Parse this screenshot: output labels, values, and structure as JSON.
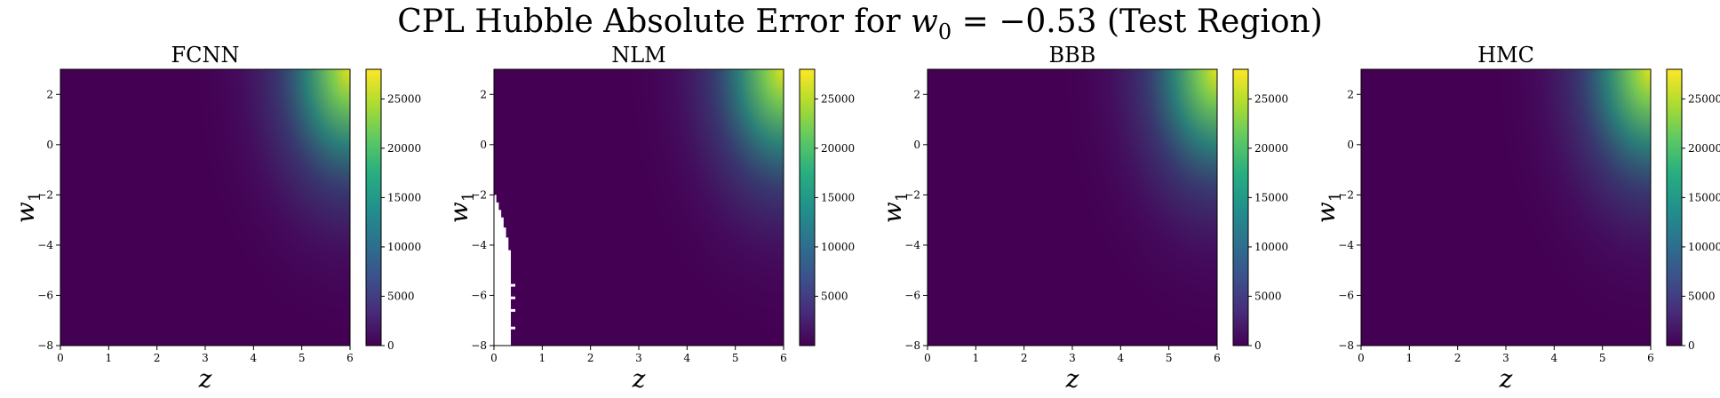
{
  "figure": {
    "title_prefix": "CPL Hubble Absolute Error for ",
    "title_var": "w",
    "title_sub": "0",
    "title_suffix": " = −0.53 (Test Region)"
  },
  "chart_data": [
    {
      "type": "heatmap",
      "title": "FCNN",
      "xlabel": "z",
      "ylabel": "w",
      "ylabel_sub": "1",
      "xlim": [
        0,
        6
      ],
      "ylim": [
        -8,
        3
      ],
      "xticks": [
        0,
        1,
        2,
        3,
        4,
        5,
        6
      ],
      "yticks": [
        -8,
        -6,
        -4,
        -2,
        0,
        2
      ],
      "colormap": "viridis",
      "clim": [
        0,
        28000
      ],
      "colorbar_ticks": [
        0,
        5000,
        10000,
        15000,
        20000,
        25000
      ],
      "masked_region": []
    },
    {
      "type": "heatmap",
      "title": "NLM",
      "xlabel": "z",
      "ylabel": "w",
      "ylabel_sub": "1",
      "xlim": [
        0,
        6
      ],
      "ylim": [
        -8,
        3
      ],
      "xticks": [
        0,
        1,
        2,
        3,
        4,
        5,
        6
      ],
      "yticks": [
        -8,
        -6,
        -4,
        -2,
        0,
        2
      ],
      "colormap": "viridis",
      "clim": [
        0,
        28000
      ],
      "colorbar_ticks": [
        5000,
        10000,
        15000,
        20000,
        25000
      ],
      "masked_region": [
        {
          "w1": -2.0,
          "z_max": 0.0
        },
        {
          "w1": -2.3,
          "z_max": 0.05
        },
        {
          "w1": -2.6,
          "z_max": 0.1
        },
        {
          "w1": -2.9,
          "z_max": 0.15
        },
        {
          "w1": -3.3,
          "z_max": 0.2
        },
        {
          "w1": -3.7,
          "z_max": 0.25
        },
        {
          "w1": -4.2,
          "z_max": 0.3
        },
        {
          "w1": -5.0,
          "z_max": 0.35
        },
        {
          "w1": -8.0,
          "z_max": 0.35
        }
      ]
    },
    {
      "type": "heatmap",
      "title": "BBB",
      "xlabel": "z",
      "ylabel": "w",
      "ylabel_sub": "1",
      "xlim": [
        0,
        6
      ],
      "ylim": [
        -8,
        3
      ],
      "xticks": [
        0,
        1,
        2,
        3,
        4,
        5,
        6
      ],
      "yticks": [
        -8,
        -6,
        -4,
        -2,
        0,
        2
      ],
      "colormap": "viridis",
      "clim": [
        0,
        28000
      ],
      "colorbar_ticks": [
        0,
        5000,
        10000,
        15000,
        20000,
        25000
      ],
      "masked_region": []
    },
    {
      "type": "heatmap",
      "title": "HMC",
      "xlabel": "z",
      "ylabel": "w",
      "ylabel_sub": "1",
      "xlim": [
        0,
        6
      ],
      "ylim": [
        -8,
        3
      ],
      "xticks": [
        0,
        1,
        2,
        3,
        4,
        5,
        6
      ],
      "yticks": [
        -8,
        -6,
        -4,
        -2,
        0,
        2
      ],
      "colormap": "viridis",
      "clim": [
        0,
        28000
      ],
      "colorbar_ticks": [
        0,
        5000,
        10000,
        15000,
        20000,
        25000
      ],
      "masked_region": []
    }
  ]
}
